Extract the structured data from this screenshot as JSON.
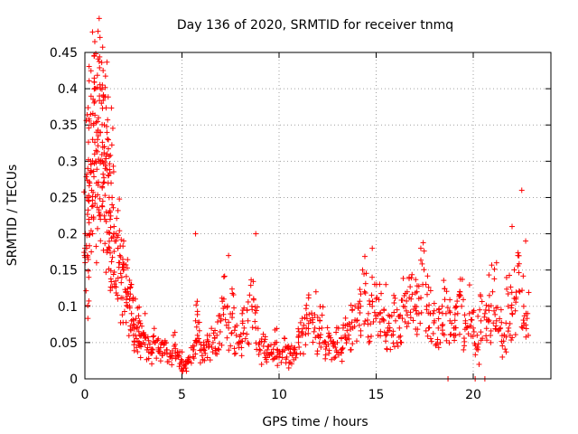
{
  "chart_data": {
    "type": "scatter",
    "title": "Day 136 of 2020, SRMTID for receiver tnmq",
    "xlabel": "GPS time / hours",
    "ylabel": "SRMTID / TECUs",
    "xlim": [
      0,
      24
    ],
    "ylim": [
      0,
      0.45
    ],
    "xticks": [
      0,
      5,
      10,
      15,
      20
    ],
    "yticks": [
      0,
      0.05,
      0.1,
      0.15,
      0.2,
      0.25,
      0.3,
      0.35,
      0.4,
      0.45
    ],
    "xtick_labels": [
      "0",
      "5",
      "10",
      "15",
      "20"
    ],
    "ytick_labels": [
      "0",
      "0.05",
      "0.1",
      "0.15",
      "0.2",
      "0.25",
      "0.3",
      "0.35",
      "0.4",
      "0.45"
    ],
    "grid": true,
    "marker": "+",
    "color": "#ff0000",
    "series": [
      {
        "name": "SRMTID",
        "x": [
          0.0,
          0.1,
          0.15,
          0.2,
          0.25,
          0.3,
          0.35,
          0.4,
          0.45,
          0.5,
          0.55,
          0.6,
          0.65,
          0.7,
          0.75,
          0.8,
          0.85,
          0.9,
          0.95,
          1.0,
          1.05,
          1.1,
          1.15,
          1.2,
          1.25,
          1.3,
          1.35,
          1.4,
          1.5,
          1.6,
          1.7,
          1.8,
          1.9,
          2.0,
          2.1,
          2.2,
          2.3,
          2.4,
          2.5,
          2.6,
          2.7,
          2.8,
          2.9,
          3.0,
          3.2,
          3.4,
          3.6,
          3.8,
          4.0,
          4.2,
          4.4,
          4.6,
          4.8,
          5.0,
          5.2,
          5.4,
          5.6,
          5.7,
          5.8,
          6.0,
          6.2,
          6.4,
          6.6,
          6.8,
          7.0,
          7.2,
          7.4,
          7.6,
          7.8,
          8.0,
          8.2,
          8.4,
          8.6,
          8.8,
          9.0,
          9.2,
          9.4,
          9.6,
          9.8,
          10.0,
          10.2,
          10.4,
          10.6,
          10.8,
          11.0,
          11.2,
          11.4,
          11.6,
          11.8,
          12.0,
          12.2,
          12.4,
          12.6,
          12.8,
          13.0,
          13.2,
          13.4,
          13.6,
          13.8,
          14.0,
          14.2,
          14.4,
          14.6,
          14.8,
          15.0,
          15.2,
          15.4,
          15.6,
          15.8,
          16.0,
          16.2,
          16.4,
          16.6,
          16.8,
          17.0,
          17.2,
          17.4,
          17.6,
          17.8,
          18.0,
          18.2,
          18.4,
          18.6,
          18.8,
          19.0,
          19.2,
          19.4,
          19.6,
          19.8,
          20.0,
          20.2,
          20.4,
          20.6,
          20.8,
          21.0,
          21.2,
          21.4,
          21.6,
          21.8,
          22.0,
          22.2,
          22.4,
          22.6,
          22.8,
          0.2,
          0.4,
          0.6,
          0.8,
          1.0,
          1.2,
          1.4,
          1.6,
          1.8,
          2.0,
          2.2,
          2.4,
          2.6,
          5.7,
          7.4,
          8.8,
          11.9,
          14.8,
          17.3,
          21.2,
          22.0,
          22.5,
          22.7,
          18.7,
          20.1,
          20.6,
          0.9,
          0.95,
          1.0,
          0.6,
          0.7,
          1.3,
          1.5,
          1.7,
          3.1,
          3.5,
          4.1,
          4.7,
          5.1,
          6.3,
          6.9,
          8.1,
          9.1,
          9.9,
          10.5,
          11.1,
          12.1,
          12.9,
          13.3,
          14.3,
          15.1,
          15.5,
          16.3,
          16.7,
          17.1,
          17.7,
          18.3,
          19.1,
          19.5,
          20.3,
          20.9,
          21.5,
          21.9,
          22.3
        ],
        "y": [
          0.18,
          0.25,
          0.29,
          0.22,
          0.27,
          0.3,
          0.26,
          0.33,
          0.35,
          0.31,
          0.3,
          0.27,
          0.33,
          0.3,
          0.39,
          0.4,
          0.38,
          0.3,
          0.27,
          0.32,
          0.29,
          0.23,
          0.31,
          0.28,
          0.25,
          0.22,
          0.27,
          0.24,
          0.21,
          0.19,
          0.18,
          0.16,
          0.14,
          0.15,
          0.12,
          0.1,
          0.11,
          0.09,
          0.08,
          0.06,
          0.07,
          0.05,
          0.06,
          0.05,
          0.04,
          0.035,
          0.05,
          0.04,
          0.035,
          0.04,
          0.03,
          0.045,
          0.03,
          0.025,
          0.02,
          0.03,
          0.04,
          0.08,
          0.06,
          0.04,
          0.035,
          0.045,
          0.05,
          0.06,
          0.08,
          0.1,
          0.07,
          0.09,
          0.06,
          0.05,
          0.07,
          0.08,
          0.1,
          0.07,
          0.05,
          0.045,
          0.04,
          0.035,
          0.05,
          0.03,
          0.04,
          0.03,
          0.035,
          0.04,
          0.05,
          0.06,
          0.07,
          0.08,
          0.065,
          0.06,
          0.07,
          0.05,
          0.06,
          0.045,
          0.05,
          0.04,
          0.06,
          0.055,
          0.07,
          0.08,
          0.1,
          0.12,
          0.09,
          0.1,
          0.11,
          0.09,
          0.08,
          0.07,
          0.06,
          0.08,
          0.07,
          0.1,
          0.12,
          0.11,
          0.1,
          0.09,
          0.13,
          0.1,
          0.09,
          0.08,
          0.07,
          0.1,
          0.09,
          0.08,
          0.07,
          0.09,
          0.1,
          0.08,
          0.09,
          0.07,
          0.06,
          0.08,
          0.09,
          0.1,
          0.12,
          0.08,
          0.07,
          0.06,
          0.1,
          0.09,
          0.11,
          0.12,
          0.1,
          0.09,
          0.14,
          0.2,
          0.16,
          0.22,
          0.32,
          0.27,
          0.25,
          0.2,
          0.17,
          0.19,
          0.12,
          0.13,
          0.11,
          0.2,
          0.17,
          0.2,
          0.12,
          0.18,
          0.18,
          0.16,
          0.21,
          0.26,
          0.19,
          0.0,
          0.0,
          0.0,
          0.405,
          0.39,
          0.35,
          0.34,
          0.36,
          0.23,
          0.2,
          0.18,
          0.09,
          0.04,
          0.05,
          0.03,
          0.015,
          0.06,
          0.04,
          0.09,
          0.02,
          0.03,
          0.045,
          0.035,
          0.08,
          0.03,
          0.07,
          0.15,
          0.06,
          0.13,
          0.05,
          0.14,
          0.12,
          0.07,
          0.05,
          0.06,
          0.04,
          0.02,
          0.05,
          0.03,
          0.06,
          0.17
        ]
      }
    ]
  }
}
